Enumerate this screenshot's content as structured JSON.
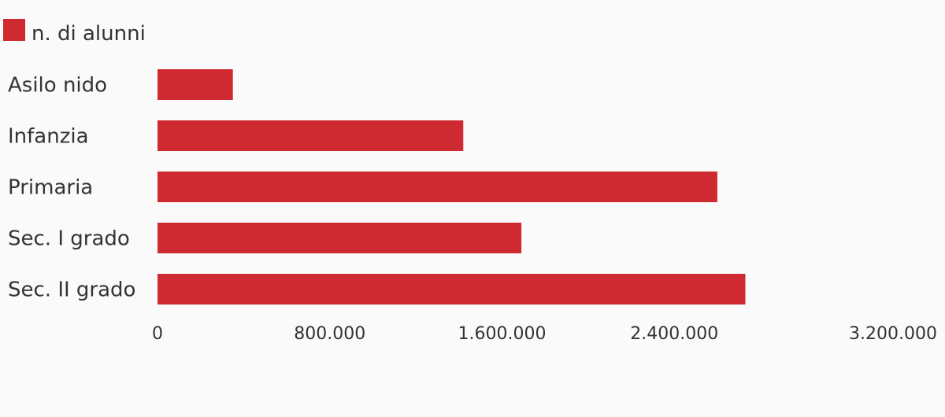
{
  "chart_data": {
    "type": "bar",
    "orientation": "horizontal",
    "title": "",
    "xlabel": "",
    "ylabel": "",
    "categories": [
      "Asilo nido",
      "Infanzia",
      "Primaria",
      "Sec. I grado",
      "Sec. II grado"
    ],
    "series": [
      {
        "name": "n. di alunni",
        "color": "#cf2a31",
        "values": [
          350000,
          1420000,
          2600000,
          1690000,
          2730000
        ]
      }
    ],
    "xlim": [
      0,
      3200000
    ],
    "ticks": [
      0,
      800000,
      1600000,
      2400000,
      3200000
    ],
    "tick_labels": [
      "0",
      "800.000",
      "1.600.000",
      "2.400.000",
      "3.200.000"
    ],
    "grid": false,
    "legend": "top-left"
  }
}
